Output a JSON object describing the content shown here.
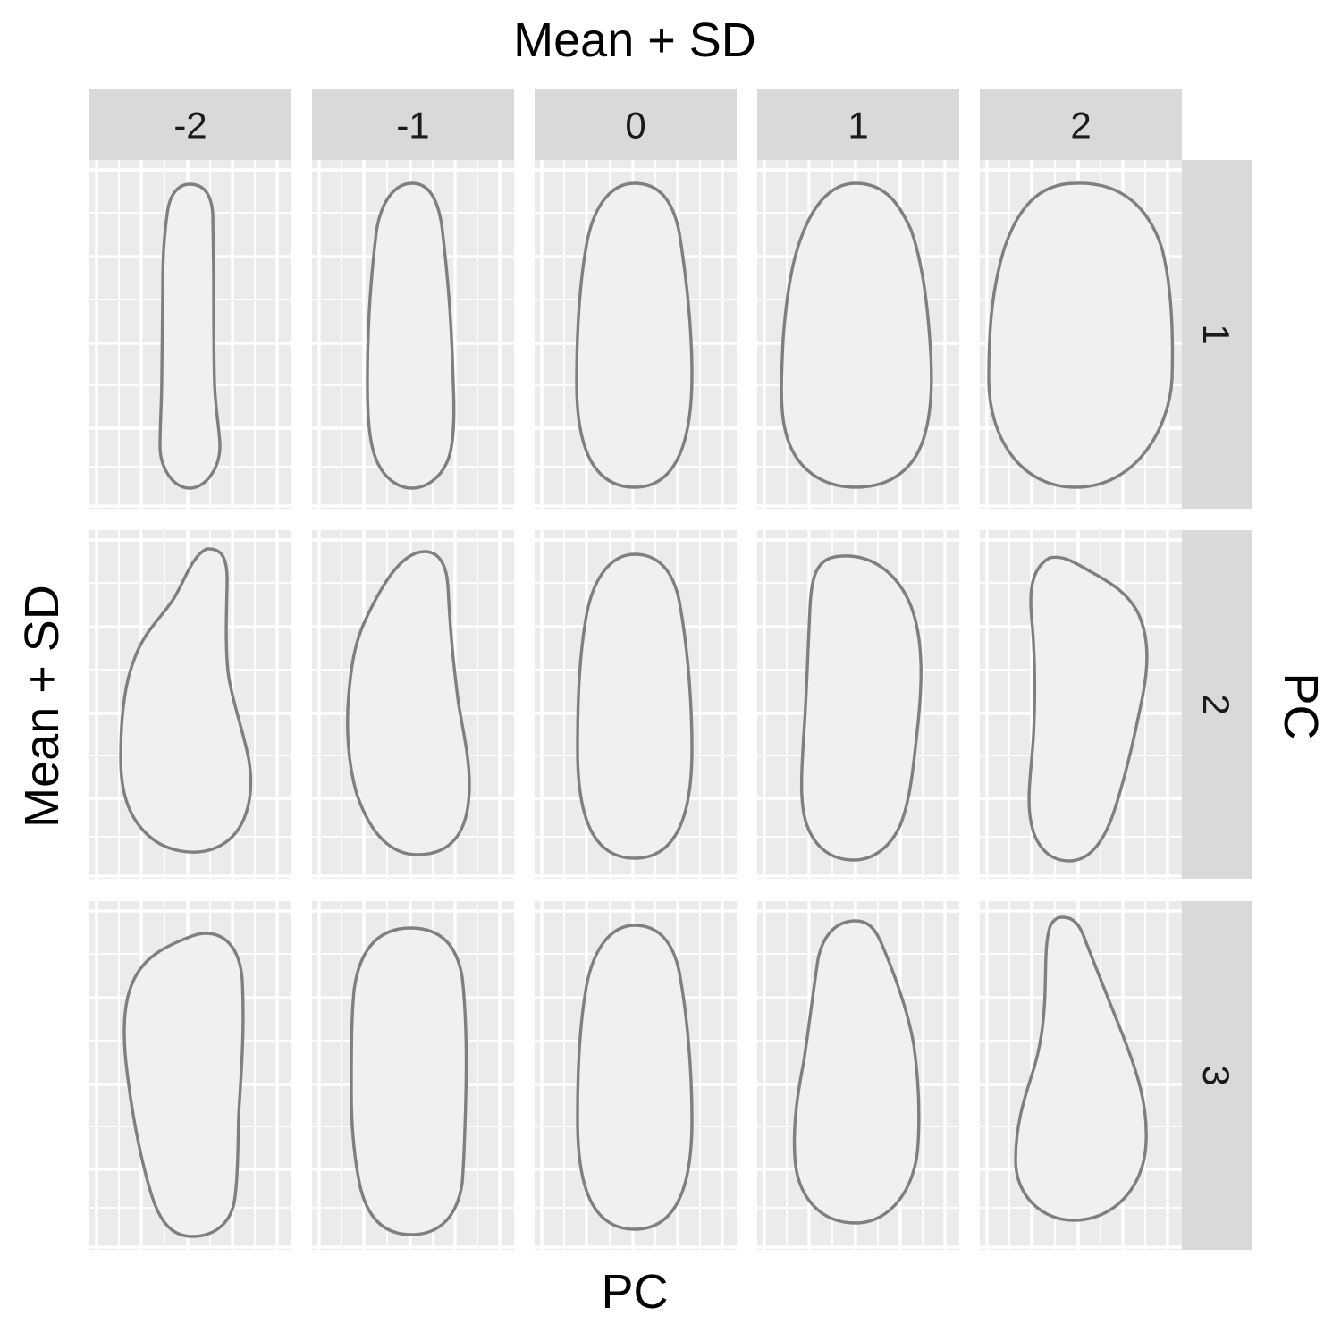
{
  "chart_data": {
    "type": "facet-grid-shapes",
    "title": "Mean + SD",
    "xlabel": "PC",
    "ylabel": "Mean + SD",
    "facet_right_label": "PC",
    "column_facets": [
      "-2",
      "-1",
      "0",
      "1",
      "2"
    ],
    "row_facets": [
      "1",
      "2",
      "3"
    ],
    "grid": true,
    "shape_fill": "#f0f0f0",
    "shape_outline": "#7f7f7f",
    "panel_background": "#ebebeb",
    "strip_background": "#d9d9d9",
    "shapes": [
      {
        "pc": "1",
        "sd": "-2",
        "description": "very narrow elongated outline"
      },
      {
        "pc": "1",
        "sd": "-1",
        "description": "narrow elongated outline"
      },
      {
        "pc": "1",
        "sd": "0",
        "description": "mean outline"
      },
      {
        "pc": "1",
        "sd": "1",
        "description": "wider outline"
      },
      {
        "pc": "1",
        "sd": "2",
        "description": "widest rounded outline"
      },
      {
        "pc": "2",
        "sd": "-2",
        "description": "bulges left at bottom, narrow top right"
      },
      {
        "pc": "2",
        "sd": "-1",
        "description": "slight left bulge"
      },
      {
        "pc": "2",
        "sd": "0",
        "description": "mean outline"
      },
      {
        "pc": "2",
        "sd": "1",
        "description": "straight left, bulging right top"
      },
      {
        "pc": "2",
        "sd": "2",
        "description": "concave left, strongly bulging right top"
      },
      {
        "pc": "3",
        "sd": "-2",
        "description": "wide top, tapering bottom"
      },
      {
        "pc": "3",
        "sd": "-1",
        "description": "rounded rectangle"
      },
      {
        "pc": "3",
        "sd": "0",
        "description": "mean outline"
      },
      {
        "pc": "3",
        "sd": "1",
        "description": "narrow top, wider bottom"
      },
      {
        "pc": "3",
        "sd": "2",
        "description": "very narrow top, wide bottom"
      }
    ]
  }
}
